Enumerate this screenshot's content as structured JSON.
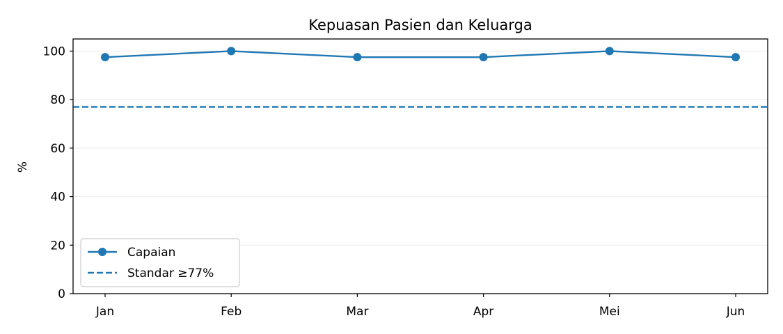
{
  "chart_data": {
    "type": "line",
    "title": "Kepuasan Pasien dan Keluarga",
    "xlabel": "",
    "ylabel": "%",
    "categories": [
      "Jan",
      "Feb",
      "Mar",
      "Apr",
      "Mei",
      "Jun"
    ],
    "series": [
      {
        "name": "Capaian",
        "values": [
          97.5,
          100,
          97.5,
          97.5,
          100,
          97.5
        ],
        "color": "#1f77b4",
        "marker": "circle",
        "line_style": "solid"
      }
    ],
    "reference_lines": [
      {
        "name": "Standar ≥77%",
        "value": 77,
        "color": "#1f77b4",
        "line_style": "dashed"
      }
    ],
    "ylim": [
      0,
      105
    ],
    "yticks": [
      0,
      20,
      40,
      60,
      80,
      100
    ],
    "grid": "horizontal",
    "legend_position": "lower-left"
  }
}
